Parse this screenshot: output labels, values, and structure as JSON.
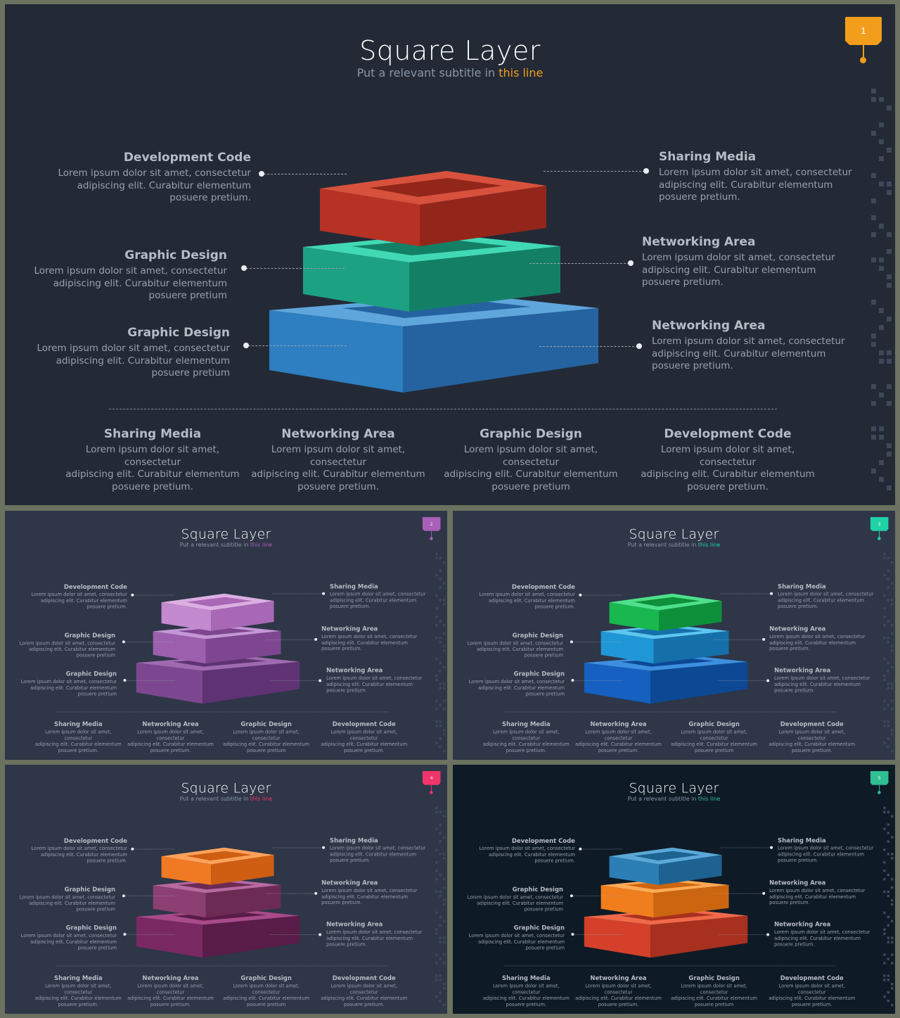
{
  "slides": [
    {
      "title": "Square Layer",
      "subtitle_prefix": "Put a relevant subtitle in ",
      "subtitle_highlight": "this line",
      "slide_number": "1",
      "colors": {
        "background": "#232a36",
        "accent": "#f29d1c",
        "top": [
          "#d8513c",
          "#b63224",
          "#93261b"
        ],
        "middle": [
          "#41d9b4",
          "#1da183",
          "#138066"
        ],
        "bottom": [
          "#5fa6dd",
          "#2e7fc1",
          "#2562a0"
        ]
      },
      "callouts": {
        "top_left": {
          "heading": "Development Code",
          "text": [
            "Lorem ipsum dolor sit amet, consectetur",
            "adipiscing elit. Curabitur elementum",
            "posuere pretium."
          ]
        },
        "mid_left": {
          "heading": "Graphic Design",
          "text": [
            "Lorem ipsum dolor sit amet, consectetur",
            "adipiscing elit. Curabitur elementum",
            "posuere pretium"
          ]
        },
        "bot_left": {
          "heading": "Graphic Design",
          "text": [
            "Lorem ipsum dolor sit amet, consectetur",
            "adipiscing elit. Curabitur elementum",
            "posuere pretium"
          ]
        },
        "top_right": {
          "heading": "Sharing Media",
          "text": [
            "Lorem ipsum dolor sit amet, consectetur",
            "adipiscing elit. Curabitur elementum",
            "posuere pretium."
          ]
        },
        "mid_right": {
          "heading": "Networking Area",
          "text": [
            "Lorem ipsum dolor sit amet, consectetur",
            "adipiscing elit. Curabitur elementum",
            "posuere pretium."
          ]
        },
        "bot_right": {
          "heading": "Networking Area",
          "text": [
            "Lorem ipsum dolor sit amet, consectetur",
            "adipiscing elit. Curabitur elementum",
            "posuere pretium."
          ]
        }
      },
      "bottom": [
        {
          "heading": "Sharing Media",
          "text": [
            "Lorem ipsum dolor sit amet, consectetur",
            "adipiscing elit. Curabitur elementum",
            "posuere pretium."
          ]
        },
        {
          "heading": "Networking Area",
          "text": [
            "Lorem ipsum dolor sit amet, consectetur",
            "adipiscing elit. Curabitur elementum",
            "posuere pretium."
          ]
        },
        {
          "heading": "Graphic Design",
          "text": [
            "Lorem ipsum dolor sit amet, consectetur",
            "adipiscing elit. Curabitur elementum",
            "posuere pretium"
          ]
        },
        {
          "heading": "Development Code",
          "text": [
            "Lorem ipsum dolor sit amet, consectetur",
            "adipiscing elit. Curabitur elementum",
            "posuere pretium."
          ]
        }
      ]
    },
    {
      "title": "Square Layer",
      "subtitle_prefix": "Put a relevant subtitle in ",
      "subtitle_highlight": "this line",
      "slide_number": "2",
      "colors": {
        "background": "#2e3647",
        "accent": "#a85fb8",
        "top": [
          "#dcaee2",
          "#c38ad0",
          "#a868b6"
        ],
        "middle": [
          "#c596d6",
          "#9c5fae",
          "#7e4690"
        ],
        "bottom": [
          "#9f6ab0",
          "#7c4790",
          "#5f3273"
        ]
      },
      "callouts": {
        "top_left": {
          "heading": "Development Code",
          "text": [
            "Lorem ipsum dolor sit amet, consectetur",
            "adipiscing elit. Curabitur elementum",
            "posuere pretium."
          ]
        },
        "mid_left": {
          "heading": "Graphic Design",
          "text": [
            "Lorem ipsum dolor sit amet, consectetur",
            "adipiscing elit. Curabitur elementum",
            "posuere pretium"
          ]
        },
        "bot_left": {
          "heading": "Graphic Design",
          "text": [
            "Lorem ipsum dolor sit amet, consectetur",
            "adipiscing elit. Curabitur elementum",
            "posuere pretium"
          ]
        },
        "top_right": {
          "heading": "Sharing Media",
          "text": [
            "Lorem ipsum dolor sit amet, consectetur",
            "adipiscing elit. Curabitur elementum",
            "posuere pretium."
          ]
        },
        "mid_right": {
          "heading": "Networking Area",
          "text": [
            "Lorem ipsum dolor sit amet, consectetur",
            "adipiscing elit. Curabitur elementum",
            "posuere pretium."
          ]
        },
        "bot_right": {
          "heading": "Networking Area",
          "text": [
            "Lorem ipsum dolor sit amet, consectetur",
            "adipiscing elit. Curabitur elementum",
            "posuere pretium."
          ]
        }
      },
      "bottom": [
        {
          "heading": "Sharing Media",
          "text": [
            "Lorem ipsum dolor sit amet, consectetur",
            "adipiscing elit. Curabitur elementum",
            "posuere pretium."
          ]
        },
        {
          "heading": "Networking Area",
          "text": [
            "Lorem ipsum dolor sit amet, consectetur",
            "adipiscing elit. Curabitur elementum",
            "posuere pretium."
          ]
        },
        {
          "heading": "Graphic Design",
          "text": [
            "Lorem ipsum dolor sit amet, consectetur",
            "adipiscing elit. Curabitur elementum",
            "posuere pretium"
          ]
        },
        {
          "heading": "Development Code",
          "text": [
            "Lorem ipsum dolor sit amet, consectetur",
            "adipiscing elit. Curabitur elementum",
            "posuere pretium."
          ]
        }
      ]
    },
    {
      "title": "Square Layer",
      "subtitle_prefix": "Put a relevant subtitle in ",
      "subtitle_highlight": "this line",
      "slide_number": "3",
      "colors": {
        "background": "#2e3647",
        "accent": "#1fd3a6",
        "top": [
          "#4ee08a",
          "#19b84f",
          "#0e8f3a"
        ],
        "middle": [
          "#5bc6f0",
          "#1f97d6",
          "#1570aa"
        ],
        "bottom": [
          "#3d8fe0",
          "#1560c0",
          "#0c4894"
        ]
      },
      "callouts": {
        "top_left": {
          "heading": "Development Code",
          "text": [
            "Lorem ipsum dolor sit amet, consectetur",
            "adipiscing elit. Curabitur elementum",
            "posuere pretium."
          ]
        },
        "mid_left": {
          "heading": "Graphic Design",
          "text": [
            "Lorem ipsum dolor sit amet, consectetur",
            "adipiscing elit. Curabitur elementum",
            "posuere pretium"
          ]
        },
        "bot_left": {
          "heading": "Graphic Design",
          "text": [
            "Lorem ipsum dolor sit amet, consectetur",
            "adipiscing elit. Curabitur elementum",
            "posuere pretium"
          ]
        },
        "top_right": {
          "heading": "Sharing Media",
          "text": [
            "Lorem ipsum dolor sit amet, consectetur",
            "adipiscing elit. Curabitur elementum",
            "posuere pretium."
          ]
        },
        "mid_right": {
          "heading": "Networking Area",
          "text": [
            "Lorem ipsum dolor sit amet, consectetur",
            "adipiscing elit. Curabitur elementum",
            "posuere pretium."
          ]
        },
        "bot_right": {
          "heading": "Networking Area",
          "text": [
            "Lorem ipsum dolor sit amet, consectetur",
            "adipiscing elit. Curabitur elementum",
            "posuere pretium."
          ]
        }
      },
      "bottom": [
        {
          "heading": "Sharing Media",
          "text": [
            "Lorem ipsum dolor sit amet, consectetur",
            "adipiscing elit. Curabitur elementum",
            "posuere pretium."
          ]
        },
        {
          "heading": "Networking Area",
          "text": [
            "Lorem ipsum dolor sit amet, consectetur",
            "adipiscing elit. Curabitur elementum",
            "posuere pretium."
          ]
        },
        {
          "heading": "Graphic Design",
          "text": [
            "Lorem ipsum dolor sit amet, consectetur",
            "adipiscing elit. Curabitur elementum",
            "posuere pretium"
          ]
        },
        {
          "heading": "Development Code",
          "text": [
            "Lorem ipsum dolor sit amet, consectetur",
            "adipiscing elit. Curabitur elementum",
            "posuere pretium."
          ]
        }
      ]
    },
    {
      "title": "Square Layer",
      "subtitle_prefix": "Put a relevant subtitle in ",
      "subtitle_highlight": "this line",
      "slide_number": "4",
      "colors": {
        "background": "#2e3647",
        "accent": "#f0356b",
        "top": [
          "#ffa15a",
          "#f07a24",
          "#cf5e12"
        ],
        "middle": [
          "#b86aa0",
          "#8c3f72",
          "#6c2b55"
        ],
        "bottom": [
          "#a94a8a",
          "#7a2862",
          "#5a1c48"
        ]
      },
      "callouts": {
        "top_left": {
          "heading": "Development Code",
          "text": [
            "Lorem ipsum dolor sit amet, consectetur",
            "adipiscing elit. Curabitur elementum",
            "posuere pretium."
          ]
        },
        "mid_left": {
          "heading": "Graphic Design",
          "text": [
            "Lorem ipsum dolor sit amet, consectetur",
            "adipiscing elit. Curabitur elementum",
            "posuere pretium"
          ]
        },
        "bot_left": {
          "heading": "Graphic Design",
          "text": [
            "Lorem ipsum dolor sit amet, consectetur",
            "adipiscing elit. Curabitur elementum",
            "posuere pretium"
          ]
        },
        "top_right": {
          "heading": "Sharing Media",
          "text": [
            "Lorem ipsum dolor sit amet, consectetur",
            "adipiscing elit. Curabitur elementum",
            "posuere pretium."
          ]
        },
        "mid_right": {
          "heading": "Networking Area",
          "text": [
            "Lorem ipsum dolor sit amet, consectetur",
            "adipiscing elit. Curabitur elementum",
            "posuere pretium."
          ]
        },
        "bot_right": {
          "heading": "Networking Area",
          "text": [
            "Lorem ipsum dolor sit amet, consectetur",
            "adipiscing elit. Curabitur elementum",
            "posuere pretium."
          ]
        }
      },
      "bottom": [
        {
          "heading": "Sharing Media",
          "text": [
            "Lorem ipsum dolor sit amet, consectetur",
            "adipiscing elit. Curabitur elementum",
            "posuere pretium."
          ]
        },
        {
          "heading": "Networking Area",
          "text": [
            "Lorem ipsum dolor sit amet, consectetur",
            "adipiscing elit. Curabitur elementum",
            "posuere pretium."
          ]
        },
        {
          "heading": "Graphic Design",
          "text": [
            "Lorem ipsum dolor sit amet, consectetur",
            "adipiscing elit. Curabitur elementum",
            "posuere pretium"
          ]
        },
        {
          "heading": "Development Code",
          "text": [
            "Lorem ipsum dolor sit amet, consectetur",
            "adipiscing elit. Curabitur elementum",
            "posuere pretium."
          ]
        }
      ]
    },
    {
      "title": "Square Layer",
      "subtitle_prefix": "Put a relevant subtitle in ",
      "subtitle_highlight": "this line",
      "slide_number": "5",
      "colors": {
        "background": "#0e1a26",
        "accent": "#2fbf93",
        "top": [
          "#5aa8d8",
          "#2b7fb4",
          "#1d6290"
        ],
        "middle": [
          "#ffaa55",
          "#f07e1c",
          "#cc6510"
        ],
        "bottom": [
          "#f06a4a",
          "#d4402a",
          "#a8301e"
        ]
      },
      "callouts": {
        "top_left": {
          "heading": "Development Code",
          "text": [
            "Lorem ipsum dolor sit amet, consectetur",
            "adipiscing elit. Curabitur elementum",
            "posuere pretium."
          ]
        },
        "mid_left": {
          "heading": "Graphic Design",
          "text": [
            "Lorem ipsum dolor sit amet, consectetur",
            "adipiscing elit. Curabitur elementum",
            "posuere pretium"
          ]
        },
        "bot_left": {
          "heading": "Graphic Design",
          "text": [
            "Lorem ipsum dolor sit amet, consectetur",
            "adipiscing elit. Curabitur elementum",
            "posuere pretium"
          ]
        },
        "top_right": {
          "heading": "Sharing Media",
          "text": [
            "Lorem ipsum dolor sit amet, consectetur",
            "adipiscing elit. Curabitur elementum",
            "posuere pretium."
          ]
        },
        "mid_right": {
          "heading": "Networking Area",
          "text": [
            "Lorem ipsum dolor sit amet, consectetur",
            "adipiscing elit. Curabitur elementum",
            "posuere pretium."
          ]
        },
        "bot_right": {
          "heading": "Networking Area",
          "text": [
            "Lorem ipsum dolor sit amet, consectetur",
            "adipiscing elit. Curabitur elementum",
            "posuere pretium."
          ]
        }
      },
      "bottom": [
        {
          "heading": "Sharing Media",
          "text": [
            "Lorem ipsum dolor sit amet, consectetur",
            "adipiscing elit. Curabitur elementum",
            "posuere pretium."
          ]
        },
        {
          "heading": "Networking Area",
          "text": [
            "Lorem ipsum dolor sit amet, consectetur",
            "adipiscing elit. Curabitur elementum",
            "posuere pretium."
          ]
        },
        {
          "heading": "Graphic Design",
          "text": [
            "Lorem ipsum dolor sit amet, consectetur",
            "adipiscing elit. Curabitur elementum",
            "posuere pretium"
          ]
        },
        {
          "heading": "Development Code",
          "text": [
            "Lorem ipsum dolor sit amet, consectetur",
            "adipiscing elit. Curabitur elementum",
            "posuere pretium."
          ]
        }
      ]
    }
  ]
}
